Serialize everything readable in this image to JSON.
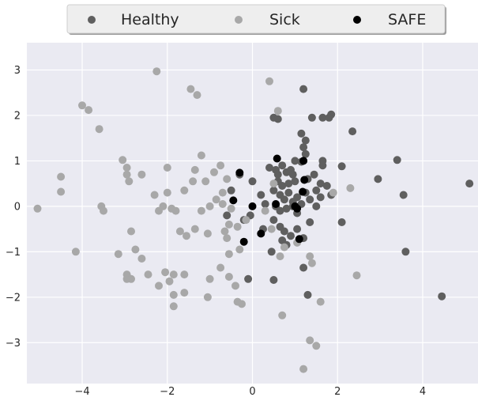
{
  "chart_data": {
    "type": "scatter",
    "title": "",
    "xlabel": "",
    "ylabel": "",
    "xlim": [
      -5.3,
      5.3
    ],
    "ylim": [
      -3.9,
      3.6
    ],
    "xticks": [
      -4,
      -2,
      0,
      2,
      4
    ],
    "yticks": [
      -3,
      -2,
      -1,
      0,
      1,
      2,
      3
    ],
    "xtick_labels": [
      "−4",
      "−2",
      "0",
      "2",
      "4"
    ],
    "ytick_labels": [
      "−3",
      "−2",
      "−1",
      "0",
      "1",
      "2",
      "3"
    ],
    "grid": true,
    "background": "#eaeaf2",
    "legend_position": "top-center",
    "series": [
      {
        "name": "Healthy",
        "color": "#5f5f5f",
        "points": [
          [
            0.5,
            1.95
          ],
          [
            0.6,
            1.92
          ],
          [
            1.2,
            2.58
          ],
          [
            1.4,
            1.95
          ],
          [
            1.65,
            1.95
          ],
          [
            1.85,
            2.02
          ],
          [
            1.8,
            1.95
          ],
          [
            2.35,
            1.65
          ],
          [
            1.15,
            1.6
          ],
          [
            1.25,
            1.45
          ],
          [
            1.2,
            1.3
          ],
          [
            1.25,
            1.15
          ],
          [
            1.0,
            1.0
          ],
          [
            1.15,
            0.98
          ],
          [
            1.65,
            1.0
          ],
          [
            1.65,
            0.9
          ],
          [
            2.1,
            0.88
          ],
          [
            3.4,
            1.02
          ],
          [
            2.95,
            0.6
          ],
          [
            3.55,
            0.25
          ],
          [
            5.1,
            0.5
          ],
          [
            3.6,
            -1.0
          ],
          [
            4.45,
            -1.98
          ],
          [
            2.1,
            -0.35
          ],
          [
            0.4,
            0.85
          ],
          [
            0.55,
            0.8
          ],
          [
            0.6,
            0.7
          ],
          [
            0.7,
            0.9
          ],
          [
            0.8,
            0.75
          ],
          [
            0.9,
            0.8
          ],
          [
            0.95,
            0.7
          ],
          [
            0.6,
            0.55
          ],
          [
            0.7,
            0.45
          ],
          [
            0.85,
            0.5
          ],
          [
            1.0,
            0.55
          ],
          [
            1.3,
            0.6
          ],
          [
            1.45,
            0.7
          ],
          [
            1.5,
            0.35
          ],
          [
            1.6,
            0.5
          ],
          [
            1.75,
            0.45
          ],
          [
            0.5,
            0.35
          ],
          [
            0.65,
            0.25
          ],
          [
            0.75,
            0.15
          ],
          [
            0.85,
            0.3
          ],
          [
            0.95,
            0.1
          ],
          [
            1.05,
            0.2
          ],
          [
            1.15,
            0.05
          ],
          [
            1.25,
            0.3
          ],
          [
            1.35,
            0.15
          ],
          [
            1.5,
            0.0
          ],
          [
            1.6,
            0.2
          ],
          [
            1.85,
            0.25
          ],
          [
            0.55,
            0.0
          ],
          [
            0.65,
            -0.1
          ],
          [
            0.8,
            -0.05
          ],
          [
            0.95,
            0.0
          ],
          [
            1.05,
            -0.15
          ],
          [
            0.5,
            -0.3
          ],
          [
            0.65,
            -0.45
          ],
          [
            0.75,
            -0.55
          ],
          [
            0.9,
            -0.65
          ],
          [
            1.05,
            -0.5
          ],
          [
            1.2,
            -0.7
          ],
          [
            1.35,
            -0.35
          ],
          [
            0.7,
            -0.75
          ],
          [
            0.8,
            -0.85
          ],
          [
            0.0,
            0.55
          ],
          [
            0.2,
            0.25
          ],
          [
            0.3,
            0.05
          ],
          [
            -0.05,
            -0.2
          ],
          [
            -0.2,
            -0.3
          ],
          [
            0.25,
            -0.5
          ],
          [
            0.45,
            -1.0
          ],
          [
            0.5,
            -1.62
          ],
          [
            -0.1,
            -1.6
          ],
          [
            1.2,
            -1.35
          ],
          [
            1.3,
            -1.95
          ],
          [
            -0.3,
            0.7
          ],
          [
            -0.5,
            0.35
          ],
          [
            -0.6,
            -0.2
          ]
        ]
      },
      {
        "name": "Sick",
        "color": "#a8a8a8",
        "points": [
          [
            -5.05,
            -0.05
          ],
          [
            -4.5,
            0.65
          ],
          [
            -4.5,
            0.32
          ],
          [
            -4.15,
            -1.0
          ],
          [
            -4.0,
            2.22
          ],
          [
            -3.85,
            2.12
          ],
          [
            -3.6,
            1.7
          ],
          [
            -3.55,
            0.0
          ],
          [
            -3.5,
            -0.1
          ],
          [
            -3.05,
            1.02
          ],
          [
            -2.95,
            0.85
          ],
          [
            -2.95,
            0.7
          ],
          [
            -2.9,
            0.55
          ],
          [
            -2.85,
            -0.55
          ],
          [
            -3.15,
            -1.05
          ],
          [
            -2.75,
            -0.95
          ],
          [
            -2.6,
            -1.15
          ],
          [
            -2.95,
            -1.5
          ],
          [
            -2.95,
            -1.6
          ],
          [
            -2.85,
            -1.6
          ],
          [
            -2.45,
            -1.5
          ],
          [
            -2.2,
            -1.75
          ],
          [
            -2.05,
            -1.45
          ],
          [
            -1.95,
            -1.65
          ],
          [
            -1.85,
            -1.5
          ],
          [
            -1.85,
            -1.95
          ],
          [
            -1.85,
            -2.2
          ],
          [
            -1.6,
            -1.9
          ],
          [
            -1.6,
            -1.5
          ],
          [
            -1.05,
            -2.0
          ],
          [
            -1.0,
            -1.6
          ],
          [
            -2.6,
            0.7
          ],
          [
            -2.3,
            0.25
          ],
          [
            -2.0,
            0.85
          ],
          [
            -2.0,
            0.3
          ],
          [
            -2.1,
            0.0
          ],
          [
            -2.2,
            -0.1
          ],
          [
            -1.9,
            -0.05
          ],
          [
            -1.8,
            -0.1
          ],
          [
            -1.7,
            -0.55
          ],
          [
            -1.55,
            -0.65
          ],
          [
            -1.35,
            -0.5
          ],
          [
            -1.05,
            -0.6
          ],
          [
            -1.6,
            0.35
          ],
          [
            -1.4,
            0.55
          ],
          [
            -1.35,
            0.8
          ],
          [
            -1.2,
            1.12
          ],
          [
            -1.1,
            0.55
          ],
          [
            -0.9,
            0.75
          ],
          [
            -0.75,
            0.9
          ],
          [
            -1.2,
            -0.1
          ],
          [
            -1.0,
            0.0
          ],
          [
            -0.85,
            0.15
          ],
          [
            -0.7,
            0.3
          ],
          [
            -0.6,
            0.6
          ],
          [
            -0.7,
            0.05
          ],
          [
            -0.5,
            -0.05
          ],
          [
            -0.55,
            -0.4
          ],
          [
            -0.65,
            -0.55
          ],
          [
            -0.6,
            -0.7
          ],
          [
            -0.35,
            -0.45
          ],
          [
            -0.3,
            -0.95
          ],
          [
            -0.55,
            -1.05
          ],
          [
            -0.75,
            -1.35
          ],
          [
            -0.55,
            -1.55
          ],
          [
            -0.4,
            -1.75
          ],
          [
            -0.35,
            -2.1
          ],
          [
            -0.25,
            -2.15
          ],
          [
            -2.25,
            2.97
          ],
          [
            -1.45,
            2.58
          ],
          [
            -1.3,
            2.45
          ],
          [
            0.4,
            2.75
          ],
          [
            0.6,
            2.1
          ],
          [
            0.5,
            0.5
          ],
          [
            0.3,
            -0.1
          ],
          [
            0.45,
            -0.5
          ],
          [
            0.65,
            -1.1
          ],
          [
            0.75,
            -0.9
          ],
          [
            1.05,
            -0.8
          ],
          [
            1.35,
            -1.1
          ],
          [
            1.4,
            -1.25
          ],
          [
            0.7,
            -2.4
          ],
          [
            1.6,
            -2.1
          ],
          [
            1.35,
            -2.95
          ],
          [
            1.5,
            -3.07
          ],
          [
            1.2,
            -3.58
          ],
          [
            2.3,
            0.4
          ],
          [
            2.45,
            -1.52
          ],
          [
            1.9,
            0.3
          ],
          [
            -0.15,
            -0.3
          ]
        ]
      },
      {
        "name": "SAFE",
        "color": "#000000",
        "points": [
          [
            0.58,
            1.05
          ],
          [
            1.2,
            1.0
          ],
          [
            1.22,
            0.58
          ],
          [
            -0.3,
            0.74
          ],
          [
            1.18,
            0.32
          ],
          [
            -0.45,
            0.13
          ],
          [
            0.0,
            0.0
          ],
          [
            0.55,
            0.05
          ],
          [
            1.0,
            0.0
          ],
          [
            1.05,
            -0.05
          ],
          [
            0.2,
            -0.6
          ],
          [
            -0.2,
            -0.78
          ],
          [
            1.1,
            -0.72
          ]
        ]
      }
    ]
  },
  "legend": {
    "items": [
      {
        "label": "Healthy",
        "color": "#5f5f5f"
      },
      {
        "label": "Sick",
        "color": "#a8a8a8"
      },
      {
        "label": "SAFE",
        "color": "#000000"
      }
    ]
  }
}
